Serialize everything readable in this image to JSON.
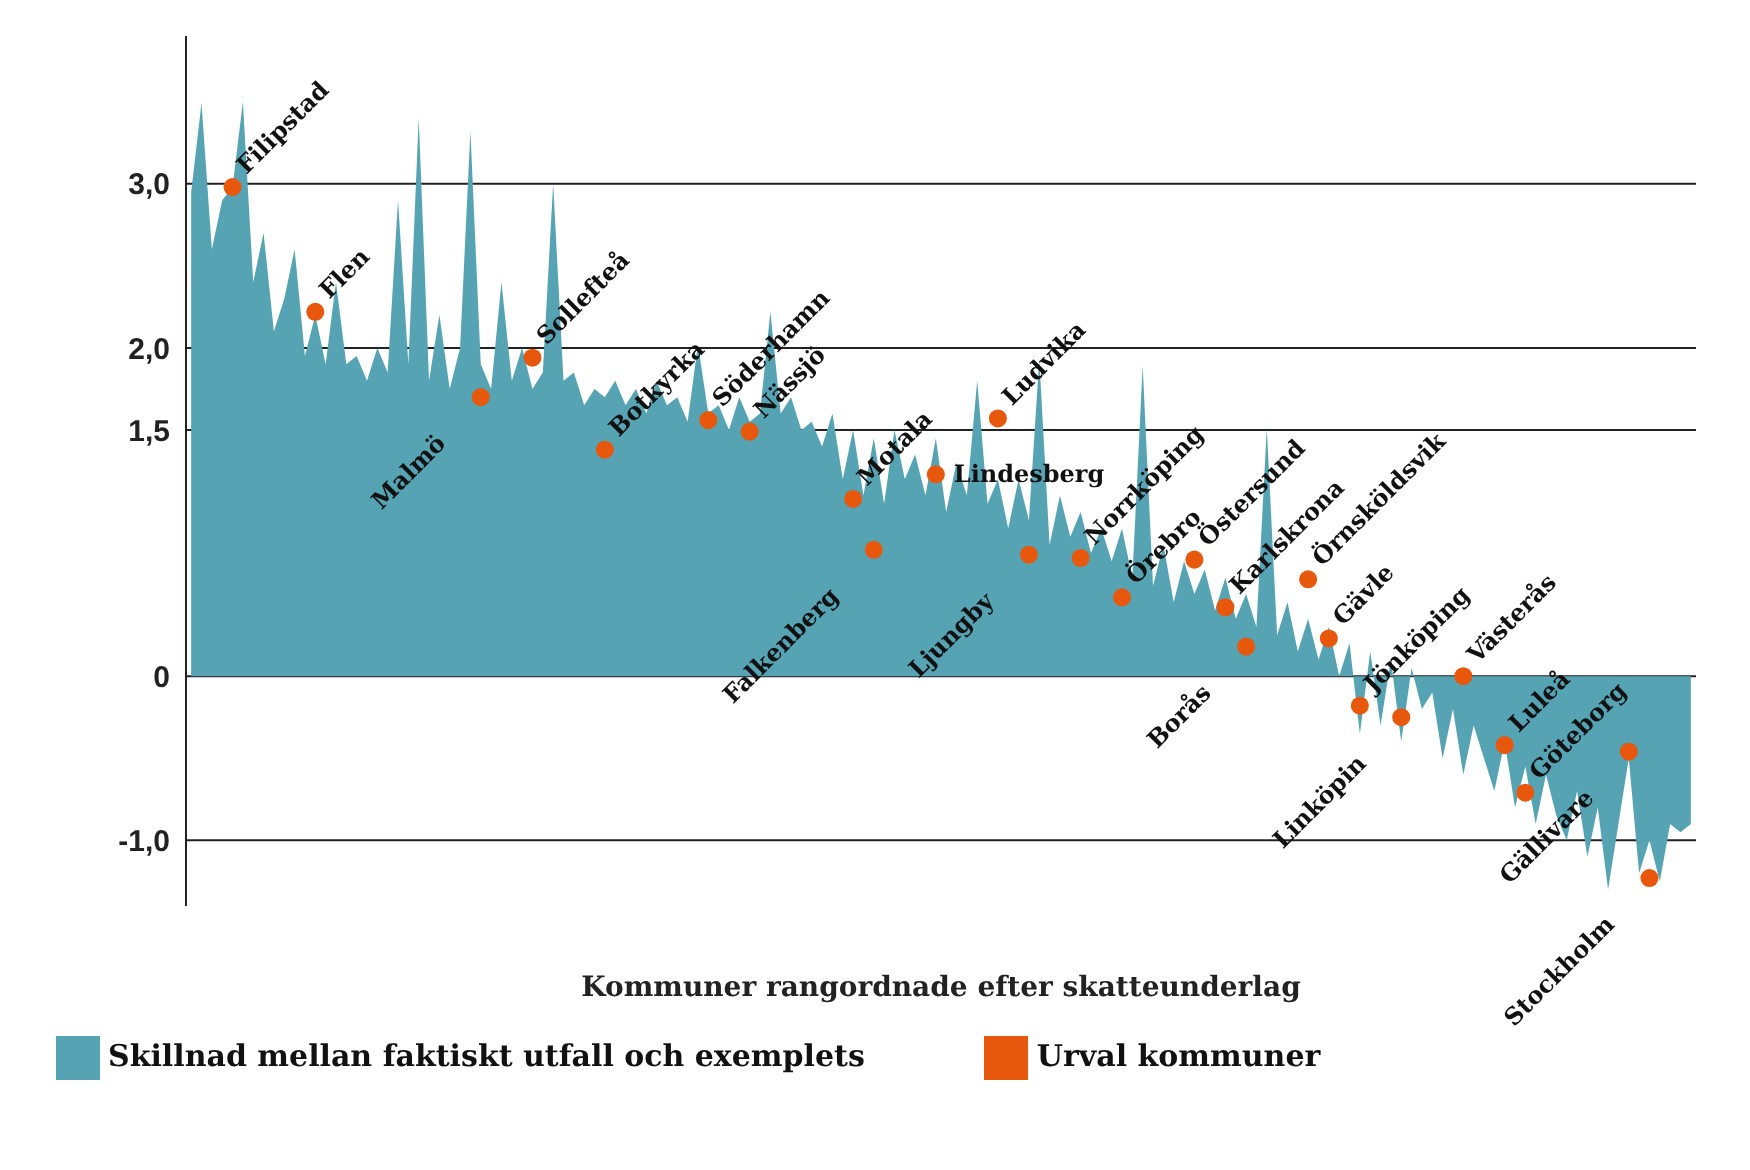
{
  "chart_data": {
    "type": "area",
    "xlabel": "Kommuner rangordnade efter skatteunderlag",
    "categories": [
      null,
      null,
      null,
      null,
      null,
      null,
      null,
      null,
      null,
      null,
      null,
      null,
      null,
      null,
      null,
      null,
      null,
      null,
      null,
      null,
      null,
      null,
      null,
      null,
      null,
      null,
      null,
      null,
      null,
      null,
      null,
      null,
      null,
      null,
      null,
      null,
      null,
      null,
      null,
      null,
      null,
      null,
      null,
      null,
      null,
      null,
      null,
      null,
      null,
      null,
      null,
      null,
      null,
      null,
      null,
      null,
      null,
      null,
      null,
      null,
      null,
      null,
      null,
      null,
      null,
      null,
      null,
      null,
      null,
      null,
      null,
      null,
      null,
      null,
      null,
      null,
      null,
      null,
      null,
      null,
      null,
      null,
      null,
      null,
      null,
      null,
      null,
      null,
      null,
      null,
      null,
      null,
      null,
      null,
      null,
      null,
      null,
      null,
      null,
      null,
      null,
      null,
      null,
      null,
      null,
      null,
      null,
      null,
      null,
      null,
      null,
      null,
      null,
      null,
      null,
      null,
      null,
      null,
      null,
      null,
      null,
      null,
      null,
      null,
      null,
      null,
      null,
      null,
      null,
      null,
      null,
      null,
      null,
      null,
      null,
      null,
      null,
      null,
      null,
      null,
      null,
      null,
      null,
      null,
      null,
      null
    ],
    "ylim": [
      -1.4,
      3.9
    ],
    "yticks": [
      {
        "value": 3,
        "label": "3,0"
      },
      {
        "value": 2,
        "label": "2,0"
      },
      {
        "value": 1.5,
        "label": "1,5"
      },
      0,
      {
        "value": -1,
        "label": "-1,0"
      }
    ],
    "tick_labels": "y",
    "grid": "y",
    "legend": "bottom left",
    "series": [
      {
        "name": "Skillnad mellan faktiskt utfall och exemplets",
        "color": "#55a3b3",
        "values": [
          2.95,
          3.49,
          2.6,
          2.9,
          2.98,
          3.5,
          2.4,
          2.7,
          2.1,
          2.3,
          2.6,
          1.95,
          2.2,
          1.9,
          2.4,
          1.9,
          1.95,
          1.8,
          2.0,
          1.85,
          2.9,
          1.9,
          3.4,
          1.8,
          2.2,
          1.75,
          2.0,
          3.32,
          1.9,
          1.75,
          2.4,
          1.8,
          2.0,
          1.75,
          1.85,
          3.0,
          1.8,
          1.85,
          1.65,
          1.75,
          1.7,
          1.8,
          1.65,
          1.75,
          1.6,
          1.8,
          1.65,
          1.7,
          1.55,
          2.02,
          1.6,
          1.65,
          1.5,
          1.7,
          1.55,
          1.6,
          2.22,
          1.6,
          1.7,
          1.5,
          1.55,
          1.4,
          1.6,
          1.2,
          1.5,
          1.1,
          1.45,
          1.05,
          1.5,
          1.2,
          1.35,
          1.1,
          1.45,
          1.0,
          1.3,
          1.1,
          1.8,
          1.05,
          1.2,
          0.9,
          1.2,
          0.95,
          1.93,
          0.8,
          1.1,
          0.85,
          1.0,
          0.75,
          0.9,
          0.7,
          0.9,
          0.6,
          1.89,
          0.55,
          0.8,
          0.45,
          0.7,
          0.5,
          0.65,
          0.4,
          0.6,
          0.35,
          0.5,
          0.3,
          1.51,
          0.25,
          0.45,
          0.15,
          0.35,
          0.1,
          0.3,
          0.0,
          0.2,
          -0.35,
          0.15,
          -0.3,
          0.1,
          -0.4,
          0.05,
          -0.2,
          -0.1,
          -0.5,
          -0.2,
          -0.6,
          -0.3,
          -0.5,
          -0.7,
          -0.4,
          -0.8,
          -0.55,
          -0.9,
          -0.6,
          -0.85,
          -1.0,
          -0.7,
          -1.1,
          -0.8,
          -1.3,
          -0.9,
          -0.5,
          -1.2,
          -1.0,
          -1.25,
          -0.9,
          -0.95,
          -0.9
        ]
      },
      {
        "name": "Urval kommuner",
        "type": "scatter",
        "color": "#e8580c",
        "marker": "circle",
        "values": [
          null,
          null,
          null,
          null,
          2.98,
          null,
          null,
          null,
          null,
          null,
          null,
          null,
          2.22,
          null,
          null,
          null,
          null,
          null,
          null,
          null,
          null,
          null,
          null,
          null,
          null,
          null,
          null,
          null,
          1.7,
          null,
          null,
          null,
          null,
          1.94,
          null,
          null,
          null,
          null,
          null,
          null,
          1.38,
          null,
          null,
          null,
          null,
          null,
          null,
          null,
          null,
          null,
          1.56,
          null,
          null,
          null,
          1.49,
          null,
          null,
          null,
          null,
          null,
          null,
          null,
          null,
          null,
          1.08,
          null,
          0.77,
          null,
          null,
          null,
          null,
          null,
          1.23,
          null,
          null,
          null,
          null,
          null,
          1.57,
          null,
          null,
          0.74,
          null,
          null,
          null,
          null,
          0.72,
          null,
          null,
          null,
          0.48,
          null,
          null,
          null,
          null,
          null,
          null,
          0.71,
          null,
          null,
          0.42,
          null,
          0.18,
          null,
          null,
          null,
          null,
          null,
          0.59,
          null,
          0.23,
          null,
          null,
          -0.18,
          null,
          null,
          null,
          -0.25,
          null,
          null,
          null,
          null,
          null,
          0.0,
          null,
          null,
          null,
          -0.42,
          null,
          -0.71,
          null,
          null,
          null,
          null,
          null,
          null,
          null,
          null,
          null,
          -0.46,
          null,
          -1.23,
          null,
          null,
          null,
          null
        ],
        "value_labels": [
          null,
          null,
          null,
          null,
          "Filipstad",
          null,
          null,
          null,
          null,
          null,
          null,
          null,
          "Flen",
          null,
          null,
          null,
          null,
          null,
          null,
          null,
          null,
          null,
          null,
          null,
          null,
          null,
          null,
          null,
          "Malmö",
          null,
          null,
          null,
          null,
          "Sollefteå",
          null,
          null,
          null,
          null,
          null,
          null,
          "Botkyrka",
          null,
          null,
          null,
          null,
          null,
          null,
          null,
          null,
          null,
          "Söderhamn",
          null,
          null,
          null,
          "Nässjö",
          null,
          null,
          null,
          null,
          null,
          null,
          null,
          null,
          null,
          "Motala",
          null,
          "Falkenberg",
          null,
          null,
          null,
          null,
          null,
          "Lindesberg",
          null,
          null,
          null,
          null,
          null,
          "Ludvika",
          null,
          null,
          "Ljungby",
          null,
          null,
          null,
          null,
          "Norrköping",
          null,
          null,
          null,
          "Örebro",
          null,
          null,
          null,
          null,
          null,
          null,
          "Östersund",
          null,
          null,
          "Karlskrona",
          null,
          "Borås",
          null,
          null,
          null,
          null,
          null,
          "Örnsköldsvik",
          null,
          "Gävle",
          null,
          null,
          "Jönköping",
          null,
          null,
          null,
          "Linköpin",
          null,
          null,
          null,
          null,
          null,
          "Västerås",
          null,
          null,
          null,
          "Luleå",
          null,
          "Göteborg",
          null,
          null,
          null,
          null,
          null,
          null,
          null,
          null,
          null,
          "Gällivare",
          null,
          "Stockholm",
          null,
          null,
          null,
          null
        ]
      }
    ]
  }
}
